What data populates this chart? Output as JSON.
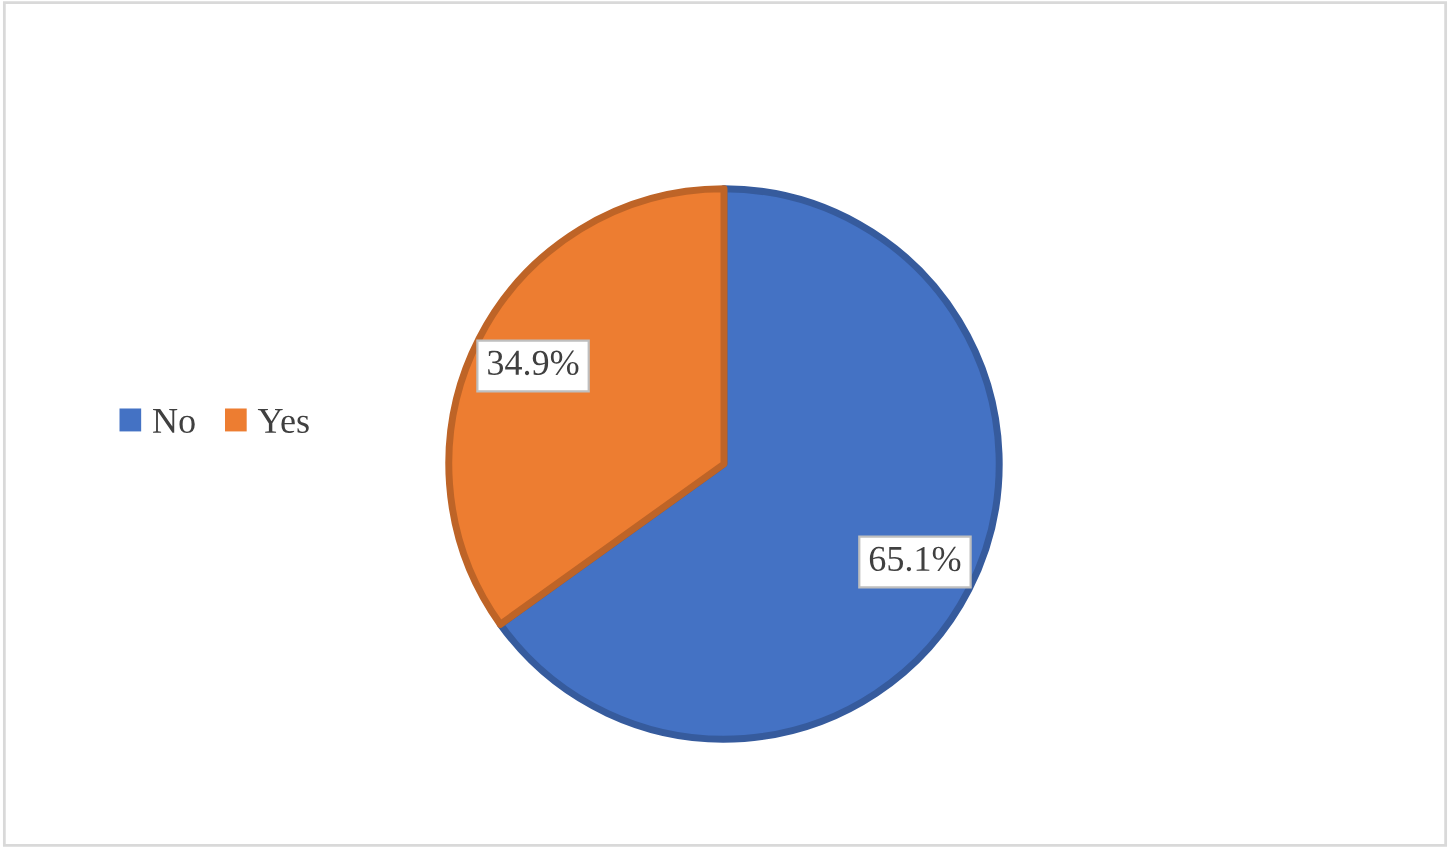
{
  "chart_data": {
    "type": "pie",
    "categories": [
      "No",
      "Yes"
    ],
    "values": [
      65.1,
      34.9
    ],
    "colors": [
      "#4472c4",
      "#ed7d31"
    ],
    "value_labels": [
      "65.1%",
      "34.9%"
    ],
    "legend": "left"
  }
}
